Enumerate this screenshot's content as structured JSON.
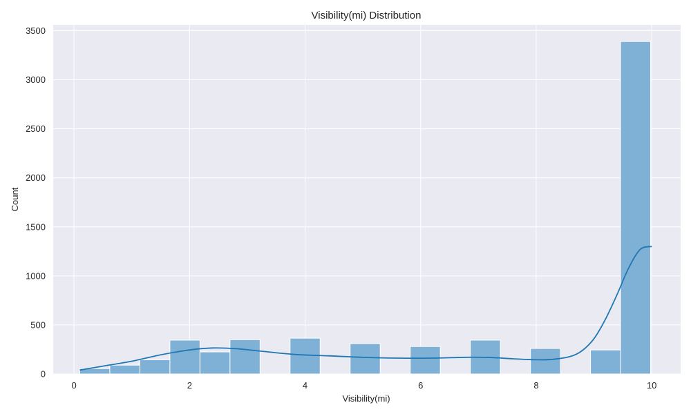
{
  "chart_data": {
    "type": "bar",
    "title": "Visibility(mi) Distribution",
    "xlabel": "Visibility(mi)",
    "ylabel": "Count",
    "xlim": [
      -0.36,
      10.5
    ],
    "ylim": [
      0,
      3560
    ],
    "xticks": [
      0,
      2,
      4,
      6,
      8,
      10
    ],
    "yticks": [
      0,
      500,
      1000,
      1500,
      2000,
      2500,
      3000,
      3500
    ],
    "grid": true,
    "background": "#eaeaf2",
    "bar_color": "#7fb0d5",
    "line_color": "#1f77b4",
    "bins": [
      {
        "x0": 0.1,
        "x1": 0.62,
        "count": 55
      },
      {
        "x0": 0.62,
        "x1": 1.14,
        "count": 90
      },
      {
        "x0": 1.14,
        "x1": 1.66,
        "count": 145
      },
      {
        "x0": 1.66,
        "x1": 2.18,
        "count": 345
      },
      {
        "x0": 2.18,
        "x1": 2.7,
        "count": 225
      },
      {
        "x0": 2.7,
        "x1": 3.22,
        "count": 350
      },
      {
        "x0": 3.22,
        "x1": 3.74,
        "count": 0
      },
      {
        "x0": 3.74,
        "x1": 4.26,
        "count": 365
      },
      {
        "x0": 4.26,
        "x1": 4.78,
        "count": 0
      },
      {
        "x0": 4.78,
        "x1": 5.3,
        "count": 310
      },
      {
        "x0": 5.3,
        "x1": 5.82,
        "count": 0
      },
      {
        "x0": 5.82,
        "x1": 6.34,
        "count": 280
      },
      {
        "x0": 6.34,
        "x1": 6.86,
        "count": 0
      },
      {
        "x0": 6.86,
        "x1": 7.38,
        "count": 345
      },
      {
        "x0": 7.38,
        "x1": 7.9,
        "count": 0
      },
      {
        "x0": 7.9,
        "x1": 8.42,
        "count": 260
      },
      {
        "x0": 8.42,
        "x1": 8.94,
        "count": 0
      },
      {
        "x0": 8.94,
        "x1": 9.46,
        "count": 245
      },
      {
        "x0": 9.46,
        "x1": 9.98,
        "count": 3390
      }
    ],
    "kde": {
      "x": [
        0.1,
        0.5,
        1.0,
        1.5,
        2.0,
        2.4,
        2.8,
        3.2,
        3.8,
        4.4,
        5.0,
        5.6,
        6.2,
        6.8,
        7.2,
        7.6,
        8.0,
        8.3,
        8.6,
        8.8,
        9.0,
        9.2,
        9.4,
        9.6,
        9.8,
        10.0
      ],
      "y": [
        40,
        80,
        130,
        195,
        245,
        265,
        258,
        235,
        200,
        185,
        170,
        162,
        162,
        170,
        168,
        155,
        145,
        150,
        180,
        240,
        360,
        560,
        810,
        1080,
        1270,
        1300
      ]
    }
  }
}
